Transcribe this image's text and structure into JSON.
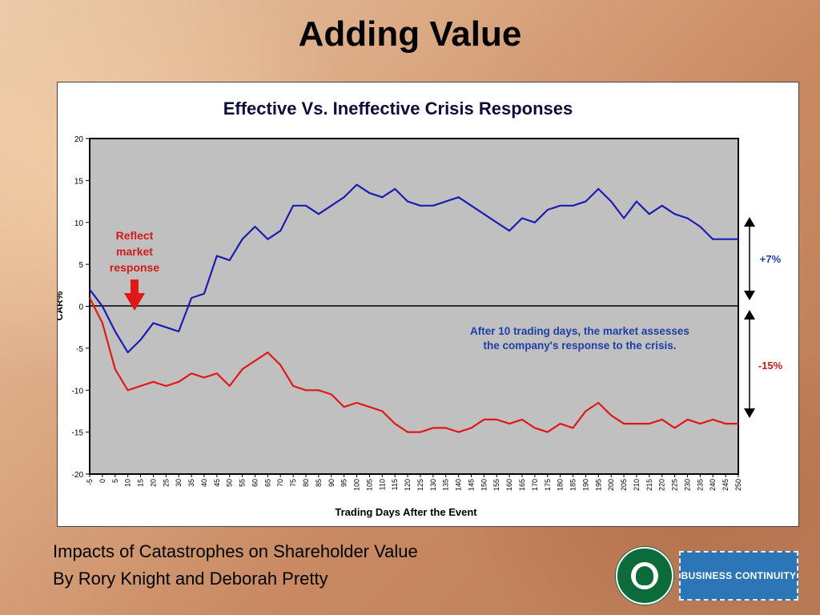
{
  "slide": {
    "title": "Adding Value",
    "caption_line1": "Impacts of Catastrophes on Shareholder Value",
    "caption_line2": "By Rory Knight and Deborah Pretty",
    "badge_text": "BUSINESS CONTINUITY",
    "logo_icon": "starbucks-coffee-logo"
  },
  "chart_data": {
    "type": "line",
    "title": "Effective Vs. Ineffective Crisis Responses",
    "xlabel": "Trading Days After the Event",
    "ylabel": "CAR%",
    "xlim": [
      -5,
      250
    ],
    "ylim": [
      -20,
      20
    ],
    "xticks": [
      -5,
      0,
      5,
      10,
      15,
      20,
      25,
      30,
      35,
      40,
      45,
      50,
      55,
      60,
      65,
      70,
      75,
      80,
      85,
      90,
      95,
      100,
      105,
      110,
      115,
      120,
      125,
      130,
      135,
      140,
      145,
      150,
      155,
      160,
      165,
      170,
      175,
      180,
      185,
      190,
      195,
      200,
      205,
      210,
      215,
      220,
      225,
      230,
      235,
      240,
      245,
      250
    ],
    "yticks": [
      20,
      15,
      10,
      5,
      0,
      -5,
      -10,
      -15,
      -20
    ],
    "grid": false,
    "series": [
      {
        "color": "#1c1cb4",
        "x": [
          -5,
          0,
          5,
          10,
          15,
          20,
          25,
          30,
          35,
          40,
          45,
          50,
          55,
          60,
          65,
          70,
          75,
          80,
          85,
          90,
          95,
          100,
          105,
          110,
          115,
          120,
          125,
          130,
          135,
          140,
          145,
          150,
          155,
          160,
          165,
          170,
          175,
          180,
          185,
          190,
          195,
          200,
          205,
          210,
          215,
          220,
          225,
          230,
          235,
          240,
          245,
          250
        ],
        "y": [
          2,
          0,
          -3,
          -5.5,
          -4,
          -2,
          -2.5,
          -3,
          1,
          1.5,
          6,
          5.5,
          8,
          9.5,
          8,
          9,
          12,
          12,
          11,
          12,
          13,
          14.5,
          13.5,
          13,
          14,
          12.5,
          12,
          12,
          12.5,
          13,
          12,
          11,
          10,
          9,
          10.5,
          10,
          11.5,
          12,
          12,
          12.5,
          14,
          12.5,
          10.5,
          12.5,
          11,
          12,
          11,
          10.5,
          9.5,
          8,
          8,
          8
        ]
      },
      {
        "color": "#e01818",
        "x": [
          -5,
          0,
          5,
          10,
          15,
          20,
          25,
          30,
          35,
          40,
          45,
          50,
          55,
          60,
          65,
          70,
          75,
          80,
          85,
          90,
          95,
          100,
          105,
          110,
          115,
          120,
          125,
          130,
          135,
          140,
          145,
          150,
          155,
          160,
          165,
          170,
          175,
          180,
          185,
          190,
          195,
          200,
          205,
          210,
          215,
          220,
          225,
          230,
          235,
          240,
          245,
          250
        ],
        "y": [
          1,
          -2,
          -7.5,
          -10,
          -9.5,
          -9,
          -9.5,
          -9,
          -8,
          -8.5,
          -8,
          -9.5,
          -7.5,
          -6.5,
          -5.5,
          -7,
          -9.5,
          -10,
          -10,
          -10.5,
          -12,
          -11.5,
          -12,
          -12.5,
          -14,
          -15,
          -15,
          -14.5,
          -14.5,
          -15,
          -14.5,
          -13.5,
          -13.5,
          -14,
          -13.5,
          -14.5,
          -15,
          -14,
          -14.5,
          -12.5,
          -11.5,
          -13,
          -14,
          -14,
          -14,
          -13.5,
          -14.5,
          -13.5,
          -14,
          -13.5,
          -14,
          -14
        ]
      }
    ],
    "annotations": {
      "reflect_market_response": "Reflect market response",
      "market_assessment": "After 10 trading days, the market assesses the company's response to the crisis.",
      "plus_label": "+7%",
      "minus_label": "-15%"
    },
    "colors": {
      "plot_bg": "#c0c0c0",
      "title": "#0d0d3a",
      "annotation_blue": "#1c3fa8",
      "annotation_red": "#d21a1a",
      "zero_line": "#000000"
    }
  }
}
